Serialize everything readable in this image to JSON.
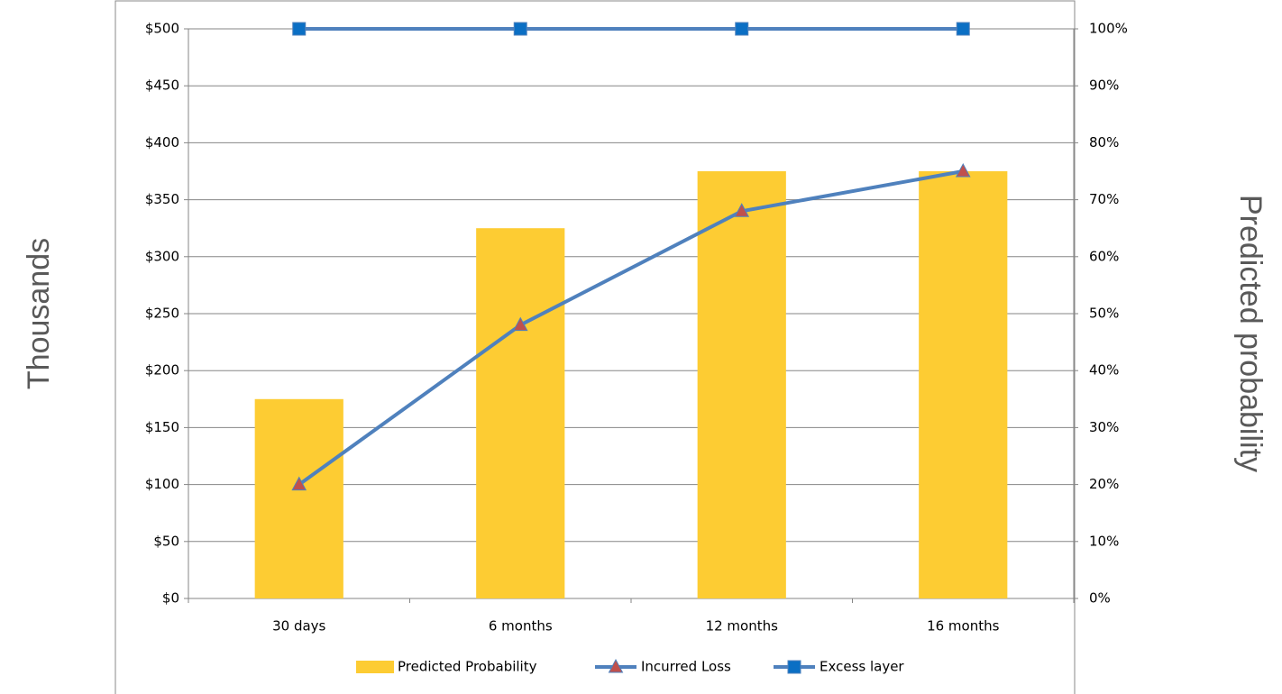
{
  "chart_data": {
    "type": "combo",
    "categories": [
      "30 days",
      "6 months",
      "12 months",
      "16 months"
    ],
    "series": [
      {
        "name": "Predicted Probability",
        "type": "bar",
        "axis": "y2",
        "color": "#fdcc33",
        "values": [
          35,
          65,
          75,
          75
        ]
      },
      {
        "name": "Incurred Loss",
        "type": "line",
        "color": "#4f81bd",
        "marker": "triangle",
        "marker_color": "#c0504d",
        "values": [
          100,
          240,
          340,
          375
        ]
      },
      {
        "name": "Excess layer",
        "type": "line",
        "color": "#4f81bd",
        "marker": "square",
        "marker_color": "#0b6fc4",
        "values": [
          500,
          500,
          500,
          500
        ]
      }
    ],
    "y_label": "Thousands",
    "y2_label": "Predicted probability",
    "ylim": [
      0,
      500
    ],
    "yticks": [
      {
        "value": 0,
        "label": "$0"
      },
      {
        "value": 50,
        "label": "$50"
      },
      {
        "value": 100,
        "label": "$100"
      },
      {
        "value": 150,
        "label": "$150"
      },
      {
        "value": 200,
        "label": "$200"
      },
      {
        "value": 250,
        "label": "$250"
      },
      {
        "value": 300,
        "label": "$300"
      },
      {
        "value": 350,
        "label": "$350"
      },
      {
        "value": 400,
        "label": "$400"
      },
      {
        "value": 450,
        "label": "$450"
      },
      {
        "value": 500,
        "label": "$500"
      }
    ],
    "y2lim": [
      0,
      100
    ],
    "y2ticks": [
      {
        "value": 0,
        "label": "0%"
      },
      {
        "value": 10,
        "label": "10%"
      },
      {
        "value": 20,
        "label": "20%"
      },
      {
        "value": 30,
        "label": "30%"
      },
      {
        "value": 40,
        "label": "40%"
      },
      {
        "value": 50,
        "label": "50%"
      },
      {
        "value": 60,
        "label": "60%"
      },
      {
        "value": 70,
        "label": "70%"
      },
      {
        "value": 80,
        "label": "80%"
      },
      {
        "value": 90,
        "label": "90%"
      },
      {
        "value": 100,
        "label": "100%"
      }
    ],
    "grid": true,
    "legend": "bottom"
  }
}
